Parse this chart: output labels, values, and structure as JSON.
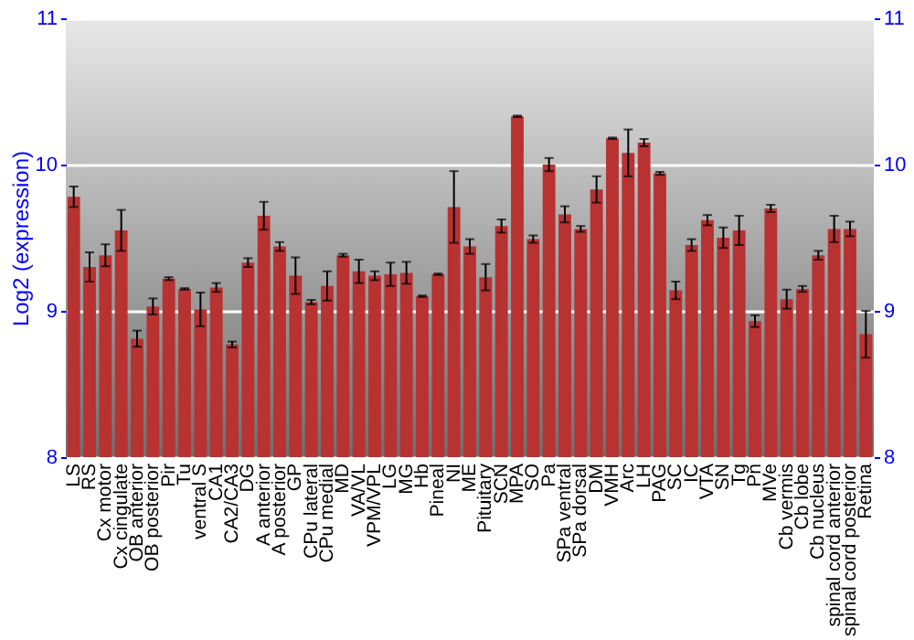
{
  "chart_data": {
    "type": "bar",
    "ylabel": "Log2 (expression)",
    "categories": [
      "LS",
      "RS",
      "Cx motor",
      "Cx cingulate",
      "OB anterior",
      "OB posterior",
      "Pir",
      "Tu",
      "ventral S",
      "CA1",
      "CA2/CA3",
      "DG",
      "A anterior",
      "A posterior",
      "GP",
      "CPu lateral",
      "CPu medial",
      "MD",
      "VA/VL",
      "VPM/VPL",
      "LG",
      "MG",
      "Hb",
      "Pineal",
      "NI",
      "ME",
      "Pituitary",
      "SCN",
      "MPA",
      "SO",
      "Pa",
      "SPa ventral",
      "SPa dorsal",
      "DM",
      "VMH",
      "Arc",
      "LH",
      "PAG",
      "SC",
      "IC",
      "VTA",
      "SN",
      "Tg",
      "Pn",
      "MVe",
      "Cb vermis",
      "Cb lobe",
      "Cb nucleus",
      "spinal cord anterior",
      "spinal cord posterior",
      "Retina"
    ],
    "series": [
      {
        "color": "#b83232",
        "values": [
          9.78,
          9.3,
          9.38,
          9.55,
          8.81,
          9.03,
          9.22,
          9.15,
          9.01,
          9.16,
          8.77,
          9.33,
          9.65,
          9.44,
          9.24,
          9.06,
          9.17,
          9.38,
          9.27,
          9.24,
          9.25,
          9.26,
          9.1,
          9.25,
          9.71,
          9.44,
          9.23,
          9.58,
          10.33,
          9.49,
          10.0,
          9.66,
          9.56,
          9.83,
          10.18,
          10.08,
          10.15,
          9.94,
          9.14,
          9.45,
          9.62,
          9.5,
          9.55,
          8.93,
          9.7,
          9.08,
          9.15,
          9.38,
          9.56,
          9.56,
          8.84
        ],
        "errors": [
          0.07,
          0.1,
          0.075,
          0.14,
          0.055,
          0.055,
          0.01,
          0.005,
          0.115,
          0.03,
          0.02,
          0.03,
          0.095,
          0.03,
          0.125,
          0.015,
          0.1,
          0.01,
          0.08,
          0.03,
          0.08,
          0.075,
          0.005,
          0.005,
          0.245,
          0.05,
          0.09,
          0.045,
          0.005,
          0.025,
          0.045,
          0.055,
          0.02,
          0.09,
          0.005,
          0.16,
          0.025,
          0.01,
          0.06,
          0.04,
          0.035,
          0.07,
          0.1,
          0.04,
          0.025,
          0.065,
          0.02,
          0.03,
          0.09,
          0.05,
          0.16
        ]
      }
    ],
    "ylim": [
      8,
      11
    ],
    "yticks": [
      8,
      9,
      10,
      11
    ],
    "y2lim": [
      8,
      11
    ],
    "y2ticks": [
      8,
      9,
      10,
      11
    ],
    "grid": "y"
  }
}
